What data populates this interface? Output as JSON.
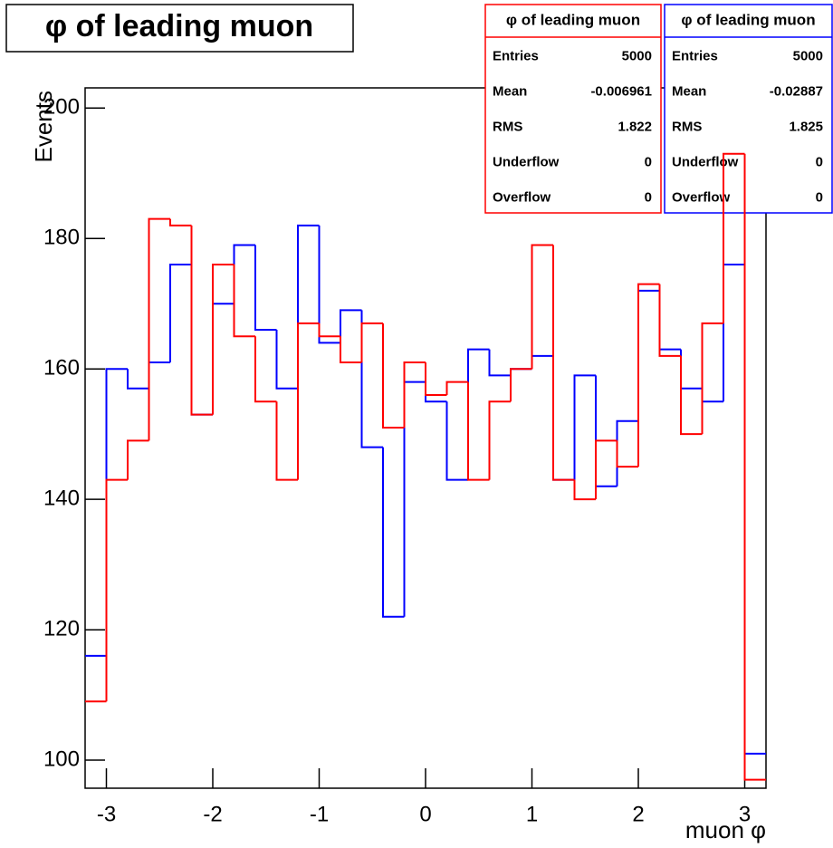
{
  "chart_data": {
    "type": "histogram",
    "title": "φ of leading muon",
    "x_label": "muon φ",
    "y_label": "Events",
    "bins": [
      -3.2,
      -3.0,
      -2.8,
      -2.6,
      -2.4,
      -2.2,
      -2.0,
      -1.8,
      -1.6,
      -1.4,
      -1.2,
      -1.0,
      -0.8,
      -0.6,
      -0.4,
      -0.2,
      0,
      0.2,
      0.4,
      0.6,
      0.8,
      1.0,
      1.2,
      1.4,
      1.6,
      1.8,
      2.0,
      2.2,
      2.4,
      2.6,
      2.8,
      3.0,
      3.2
    ],
    "series": [
      {
        "name": "φ of leading muon",
        "color": "#0000ff",
        "values": [
          116,
          160,
          157,
          161,
          176,
          153,
          170,
          179,
          166,
          157,
          182,
          164,
          169,
          148,
          122,
          158,
          155,
          143,
          163,
          159,
          160,
          162,
          143,
          159,
          142,
          152,
          172,
          163,
          157,
          155,
          176,
          101
        ]
      },
      {
        "name": "φ of leading muon",
        "color": "#ff0000",
        "values": [
          109,
          143,
          149,
          183,
          182,
          153,
          176,
          165,
          155,
          143,
          167,
          165,
          161,
          167,
          151,
          161,
          156,
          158,
          143,
          155,
          160,
          179,
          143,
          140,
          149,
          145,
          173,
          162,
          150,
          167,
          193,
          97
        ]
      }
    ],
    "stats_boxes": [
      {
        "title": "φ of leading muon",
        "color": "#ff0000",
        "rows": [
          {
            "label": "Entries",
            "value": 5000
          },
          {
            "label": "Mean",
            "value": -0.006961
          },
          {
            "label": "RMS",
            "value": 1.822
          },
          {
            "label": "Underflow",
            "value": 0
          },
          {
            "label": "Overflow",
            "value": 0
          }
        ]
      },
      {
        "title": "φ of leading muon",
        "color": "#0000ff",
        "rows": [
          {
            "label": "Entries",
            "value": 5000
          },
          {
            "label": "Mean",
            "value": -0.02887
          },
          {
            "label": "RMS",
            "value": 1.825
          },
          {
            "label": "Underflow",
            "value": 0
          },
          {
            "label": "Overflow",
            "value": 0
          }
        ]
      }
    ],
    "xlim": [
      -3.2,
      3.2
    ],
    "ylim": [
      95.7,
      203.1
    ],
    "xticks": [
      -3,
      -2,
      -1,
      0,
      1,
      2,
      3
    ],
    "yticks": [
      100,
      120,
      140,
      160,
      180,
      200
    ]
  }
}
